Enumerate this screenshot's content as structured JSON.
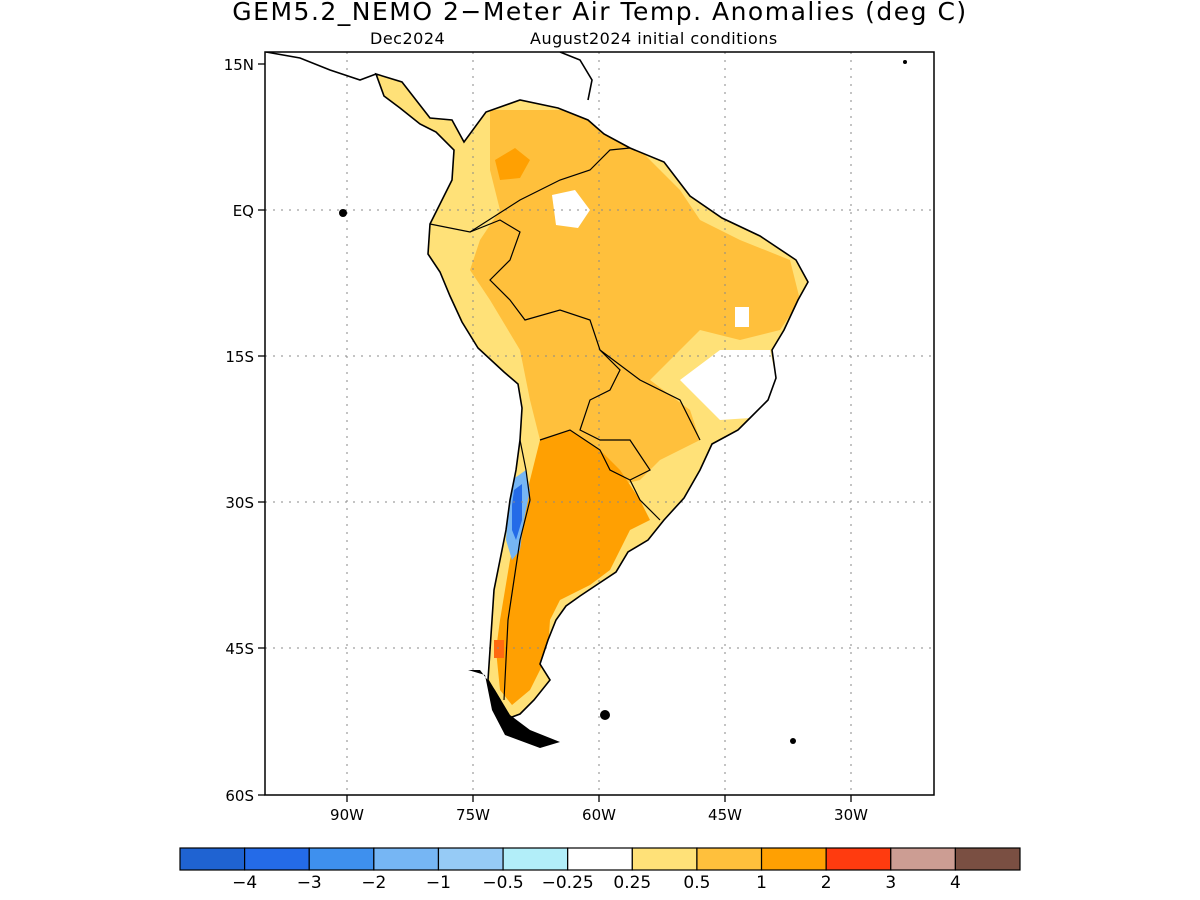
{
  "title": "GEM5.2_NEMO 2−Meter Air Temp. Anomalies (deg C)",
  "subtitle_left": "Dec2024",
  "subtitle_right": "August2024 initial conditions",
  "axes": {
    "lon_ticks": [
      "90W",
      "75W",
      "60W",
      "45W",
      "30W"
    ],
    "lat_ticks": [
      "15N",
      "EQ",
      "15S",
      "30S",
      "45S",
      "60S"
    ]
  },
  "colorbar": {
    "colors": [
      "#1f63d2",
      "#246be8",
      "#3e90ee",
      "#76b6f4",
      "#96cbf6",
      "#b2eef9",
      "#ffffff",
      "#ffe178",
      "#ffc03c",
      "#ffa002",
      "#ff3b0f",
      "#cc9d93",
      "#7a4f42"
    ],
    "labels": [
      "−4",
      "−3",
      "−2",
      "−1",
      "−0.5",
      "−0.25",
      "0.25",
      "0.5",
      "1",
      "2",
      "3",
      "4"
    ]
  },
  "map_colors": {
    "coast": "#000000",
    "grid": "#8a8a8a",
    "ocean": "#ffffff"
  }
}
